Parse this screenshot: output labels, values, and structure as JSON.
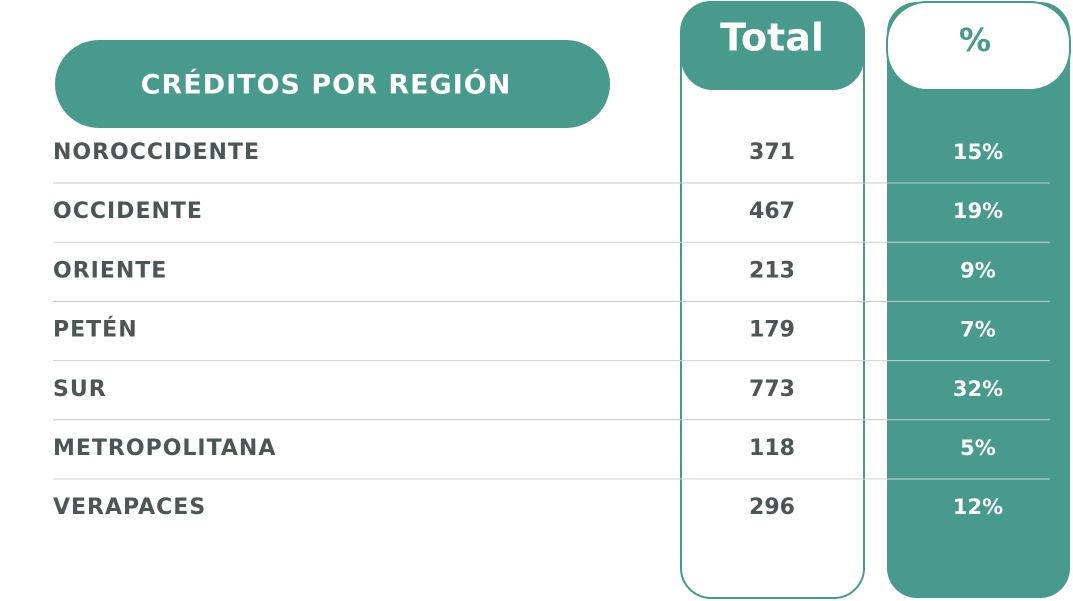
{
  "header": {
    "title": "CRÉDITOS POR REGIÓN",
    "total": "Total",
    "percent": "%"
  },
  "table": {
    "rows": [
      [
        "NOROCCIDENTE",
        "371",
        "15%"
      ],
      [
        "OCCIDENTE",
        "467",
        "19%"
      ],
      [
        "ORIENTE",
        "213",
        "9%"
      ],
      [
        "PETÉN",
        "179",
        "7%"
      ],
      [
        "SUR",
        "773",
        "32%"
      ],
      [
        "METROPOLITANA",
        "118",
        "5%"
      ],
      [
        "VERAPACES",
        "296",
        "12%"
      ]
    ]
  }
}
